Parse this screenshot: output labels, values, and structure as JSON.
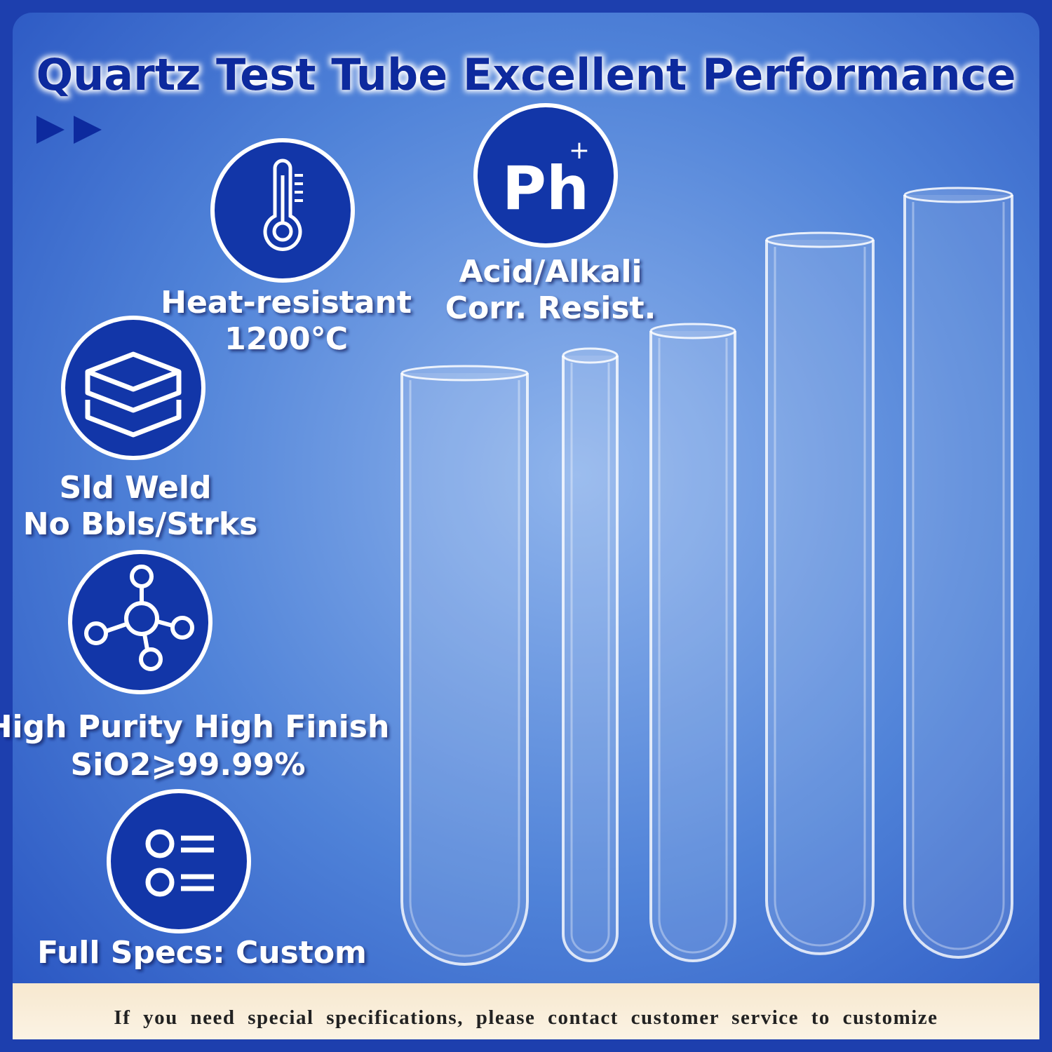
{
  "header": {
    "title": "Quartz Test Tube Excellent Performance"
  },
  "features": [
    {
      "lines": [
        "Heat-resistant",
        "1200℃"
      ]
    },
    {
      "icon_label": "Ph",
      "icon_sup": "+",
      "lines": [
        "Acid/Alkali",
        "Corr. Resist."
      ]
    },
    {
      "lines": [
        "Sld Weld",
        "No Bbls/Strks"
      ]
    },
    {
      "lines": [
        "High Purity High Finish",
        "SiO2⩾99.99%"
      ]
    },
    {
      "lines": [
        "Full Specs: Custom"
      ]
    }
  ],
  "footer": {
    "text": "If you need special specifications, please contact customer service to customize"
  }
}
